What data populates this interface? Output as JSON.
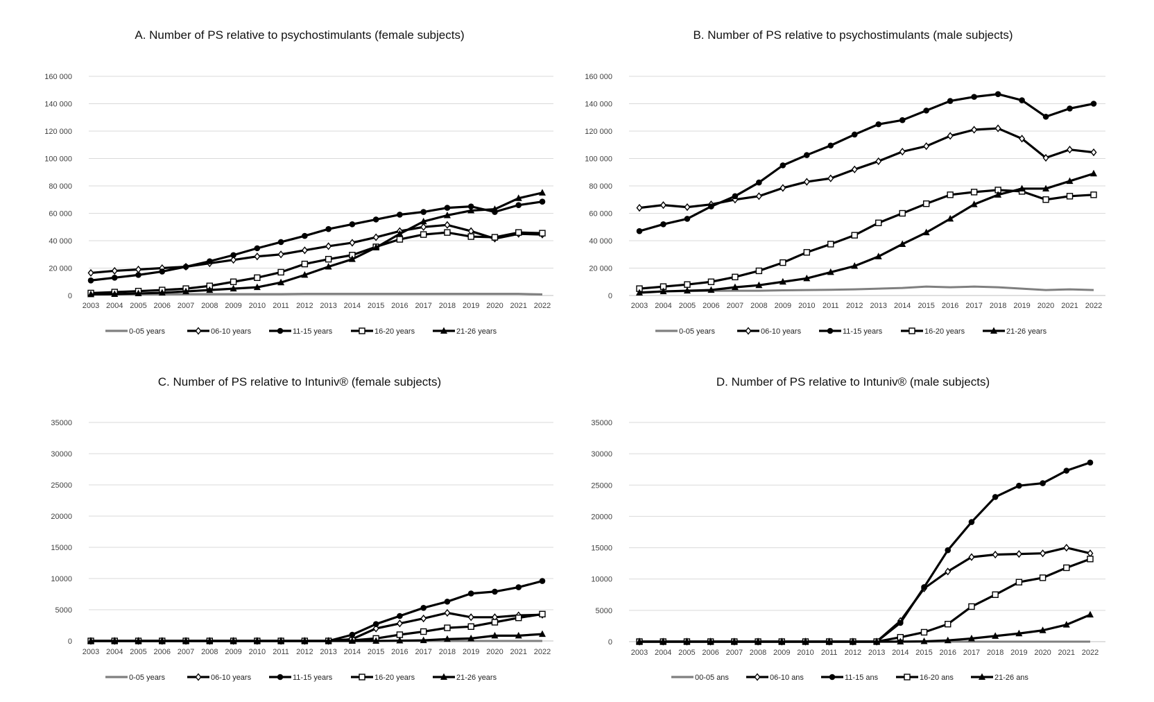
{
  "chart_data": [
    {
      "id": "A",
      "type": "line",
      "title": "A. Number of PS relative to psychostimulants (female subjects)",
      "xlabel": "",
      "ylabel": "",
      "x": [
        "2003",
        "2004",
        "2005",
        "2006",
        "2007",
        "2008",
        "2009",
        "2010",
        "2011",
        "2012",
        "2013",
        "2014",
        "2015",
        "2016",
        "2017",
        "2018",
        "2019",
        "2020",
        "2021",
        "2022"
      ],
      "ylim": [
        0,
        160000
      ],
      "yticks": [
        0,
        20000,
        40000,
        60000,
        80000,
        100000,
        120000,
        140000,
        160000
      ],
      "ytick_labels": [
        "0",
        "20 000",
        "40 000",
        "60 000",
        "80 000",
        "100 000",
        "120 000",
        "140 000",
        "160 000"
      ],
      "grid": true,
      "legend_position": "bottom",
      "series": [
        {
          "name": "0-05 years",
          "marker": "none",
          "color": "#7f7f7f",
          "values": [
            800,
            800,
            900,
            900,
            1000,
            1000,
            1000,
            1000,
            1000,
            1200,
            1200,
            1200,
            1200,
            1200,
            1200,
            1200,
            1200,
            1200,
            1200,
            800
          ]
        },
        {
          "name": "06-10 years",
          "marker": "diamond",
          "color": "#000000",
          "values": [
            16500,
            18000,
            19000,
            20000,
            21000,
            23500,
            26000,
            28500,
            30000,
            33000,
            36000,
            38500,
            42500,
            47000,
            50000,
            51500,
            47000,
            41500,
            45000,
            44500
          ]
        },
        {
          "name": "11-15 years",
          "marker": "circle",
          "color": "#000000",
          "values": [
            11000,
            13000,
            15000,
            17500,
            21000,
            25000,
            29500,
            34500,
            39000,
            43500,
            48500,
            52000,
            55500,
            59000,
            61000,
            64000,
            65000,
            61000,
            66000,
            68500
          ]
        },
        {
          "name": "16-20 years",
          "marker": "square",
          "color": "#000000",
          "values": [
            1800,
            2500,
            3200,
            4000,
            5000,
            7000,
            10000,
            13000,
            17000,
            23000,
            26500,
            29500,
            35500,
            41000,
            44500,
            46000,
            43000,
            42500,
            46000,
            45500
          ]
        },
        {
          "name": "21-26 years",
          "marker": "triangle",
          "color": "#000000",
          "values": [
            800,
            1000,
            1500,
            2000,
            3000,
            4000,
            5000,
            6000,
            9500,
            15000,
            21000,
            26500,
            35000,
            45000,
            54000,
            58500,
            62000,
            63000,
            71000,
            75000
          ]
        }
      ]
    },
    {
      "id": "B",
      "type": "line",
      "title": "B. Number of PS relative to psychostimulants (male subjects)",
      "xlabel": "",
      "ylabel": "",
      "x": [
        "2003",
        "2004",
        "2005",
        "2006",
        "2007",
        "2008",
        "2009",
        "2010",
        "2011",
        "2012",
        "2013",
        "2014",
        "2015",
        "2016",
        "2017",
        "2018",
        "2019",
        "2020",
        "2021",
        "2022"
      ],
      "ylim": [
        0,
        160000
      ],
      "yticks": [
        0,
        20000,
        40000,
        60000,
        80000,
        100000,
        120000,
        140000,
        160000
      ],
      "ytick_labels": [
        "0",
        "20 000",
        "40 000",
        "60 000",
        "80 000",
        "100 000",
        "120 000",
        "140 000",
        "160 000"
      ],
      "grid": true,
      "legend_position": "bottom",
      "series": [
        {
          "name": "0-05 years",
          "marker": "none",
          "color": "#7f7f7f",
          "values": [
            2500,
            3000,
            3200,
            3400,
            3500,
            3500,
            3800,
            4000,
            4200,
            4500,
            5000,
            5500,
            6500,
            6000,
            6500,
            6000,
            5000,
            4000,
            4500,
            4000
          ]
        },
        {
          "name": "06-10 years",
          "marker": "diamond",
          "color": "#000000",
          "values": [
            64000,
            66000,
            64500,
            66500,
            70000,
            72500,
            78500,
            83000,
            85500,
            92000,
            98000,
            105000,
            109000,
            116500,
            121000,
            122000,
            114500,
            100500,
            106500,
            104500
          ]
        },
        {
          "name": "11-15 years",
          "marker": "circle",
          "color": "#000000",
          "values": [
            47000,
            52000,
            56000,
            65000,
            72500,
            82500,
            95000,
            102500,
            109500,
            117500,
            125000,
            128000,
            135000,
            142000,
            145000,
            147000,
            142500,
            130500,
            136500,
            140000
          ]
        },
        {
          "name": "16-20 years",
          "marker": "square",
          "color": "#000000",
          "values": [
            5000,
            6500,
            8000,
            10000,
            13500,
            18000,
            24000,
            31500,
            37500,
            44000,
            53000,
            60000,
            67000,
            73500,
            75500,
            77000,
            76000,
            70000,
            72500,
            73500
          ]
        },
        {
          "name": "21-26 years",
          "marker": "triangle",
          "color": "#000000",
          "values": [
            2000,
            3000,
            3500,
            4000,
            6000,
            7500,
            10000,
            12500,
            17000,
            21500,
            28500,
            37500,
            46000,
            56000,
            66500,
            73500,
            78000,
            78000,
            83500,
            89000
          ]
        }
      ]
    },
    {
      "id": "C",
      "type": "line",
      "title": "C. Number of PS relative to Intuniv® (female subjects)",
      "xlabel": "",
      "ylabel": "",
      "x": [
        "2003",
        "2004",
        "2005",
        "2006",
        "2007",
        "2008",
        "2009",
        "2010",
        "2011",
        "2012",
        "2013",
        "2014",
        "2015",
        "2016",
        "2017",
        "2018",
        "2019",
        "2020",
        "2021",
        "2022"
      ],
      "ylim": [
        0,
        35000
      ],
      "yticks": [
        0,
        5000,
        10000,
        15000,
        20000,
        25000,
        30000,
        35000
      ],
      "ytick_labels": [
        "0",
        "5000",
        "10000",
        "15000",
        "20000",
        "25000",
        "30000",
        "35000"
      ],
      "grid": true,
      "legend_position": "bottom",
      "series": [
        {
          "name": "0-05 years",
          "marker": "none",
          "color": "#7f7f7f",
          "values": [
            0,
            0,
            0,
            0,
            0,
            0,
            0,
            0,
            0,
            0,
            0,
            0,
            0,
            0,
            0,
            0,
            0,
            0,
            0,
            0
          ]
        },
        {
          "name": "06-10 years",
          "marker": "diamond",
          "color": "#000000",
          "values": [
            0,
            0,
            0,
            0,
            0,
            0,
            0,
            0,
            0,
            0,
            0,
            300,
            2000,
            2800,
            3600,
            4500,
            3800,
            3800,
            4100,
            4200
          ]
        },
        {
          "name": "11-15 years",
          "marker": "circle",
          "color": "#000000",
          "values": [
            0,
            0,
            0,
            0,
            0,
            0,
            0,
            0,
            0,
            0,
            0,
            1000,
            2700,
            4000,
            5300,
            6300,
            7600,
            7900,
            8600,
            9600
          ]
        },
        {
          "name": "16-20 years",
          "marker": "square",
          "color": "#000000",
          "values": [
            0,
            0,
            0,
            0,
            0,
            0,
            0,
            0,
            0,
            0,
            0,
            100,
            400,
            1000,
            1500,
            2100,
            2300,
            3000,
            3700,
            4300
          ]
        },
        {
          "name": "21-26 years",
          "marker": "triangle",
          "color": "#000000",
          "values": [
            0,
            0,
            0,
            0,
            0,
            0,
            0,
            0,
            0,
            0,
            0,
            0,
            0,
            50,
            100,
            300,
            400,
            850,
            850,
            1100
          ]
        }
      ]
    },
    {
      "id": "D",
      "type": "line",
      "title": "D. Number of PS relative to Intuniv® (male subjects)",
      "xlabel": "",
      "ylabel": "",
      "x": [
        "2003",
        "2004",
        "2005",
        "2006",
        "2007",
        "2008",
        "2009",
        "2010",
        "2011",
        "2012",
        "2013",
        "2014",
        "2015",
        "2016",
        "2017",
        "2018",
        "2019",
        "2020",
        "2021",
        "2022"
      ],
      "ylim": [
        0,
        35000
      ],
      "yticks": [
        0,
        5000,
        10000,
        15000,
        20000,
        25000,
        30000,
        35000
      ],
      "ytick_labels": [
        "0",
        "5000",
        "10000",
        "15000",
        "20000",
        "25000",
        "30000",
        "35000"
      ],
      "grid": true,
      "legend_position": "bottom",
      "series": [
        {
          "name": "00-05 ans",
          "marker": "none",
          "color": "#7f7f7f",
          "values": [
            0,
            0,
            0,
            0,
            0,
            0,
            0,
            0,
            0,
            0,
            0,
            0,
            0,
            0,
            0,
            0,
            0,
            0,
            0,
            0
          ]
        },
        {
          "name": "06-10 ans",
          "marker": "diamond",
          "color": "#000000",
          "values": [
            0,
            0,
            0,
            0,
            0,
            0,
            0,
            0,
            0,
            0,
            0,
            3300,
            8500,
            11200,
            13500,
            13900,
            14000,
            14100,
            15000,
            14100
          ]
        },
        {
          "name": "11-15 ans",
          "marker": "circle",
          "color": "#000000",
          "values": [
            0,
            0,
            0,
            0,
            0,
            0,
            0,
            0,
            0,
            0,
            0,
            3000,
            8700,
            14600,
            19100,
            23100,
            24900,
            25300,
            27300,
            28600
          ]
        },
        {
          "name": "16-20 ans",
          "marker": "square",
          "color": "#000000",
          "values": [
            0,
            0,
            0,
            0,
            0,
            0,
            0,
            0,
            0,
            0,
            0,
            700,
            1500,
            2800,
            5600,
            7500,
            9500,
            10200,
            11800,
            13200
          ]
        },
        {
          "name": "21-26 ans",
          "marker": "triangle",
          "color": "#000000",
          "values": [
            0,
            0,
            0,
            0,
            0,
            0,
            0,
            0,
            0,
            0,
            0,
            0,
            50,
            200,
            500,
            900,
            1300,
            1800,
            2700,
            4300
          ]
        }
      ]
    }
  ]
}
